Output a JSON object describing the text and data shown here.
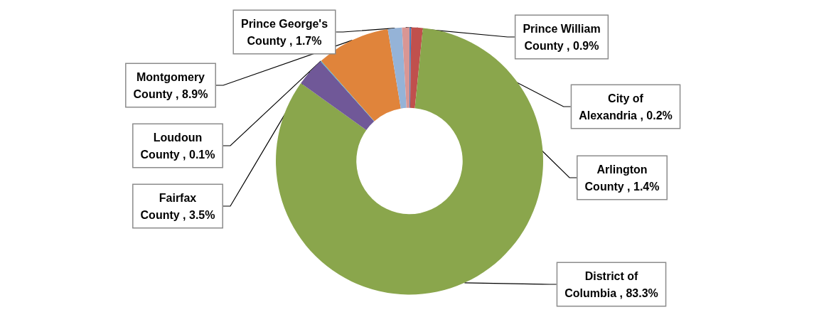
{
  "chart_data": {
    "type": "donut",
    "categories": [
      "City of Alexandria",
      "Arlington County",
      "District of Columbia",
      "Fairfax County",
      "Loudoun County",
      "Montgomery County",
      "Prince George's County",
      "Prince William County"
    ],
    "values": [
      0.2,
      1.4,
      83.3,
      3.5,
      0.1,
      8.9,
      1.7,
      0.9
    ],
    "value_labels": [
      "0.2%",
      "1.4%",
      "83.3%",
      "3.5%",
      "0.1%",
      "8.9%",
      "1.7%",
      "0.9%"
    ],
    "colors": [
      "#4f81bd",
      "#c0504d",
      "#8aa64c",
      "#705898",
      "#4bacc6",
      "#e0843b",
      "#95b3d7",
      "#d99694"
    ],
    "legend": false
  }
}
